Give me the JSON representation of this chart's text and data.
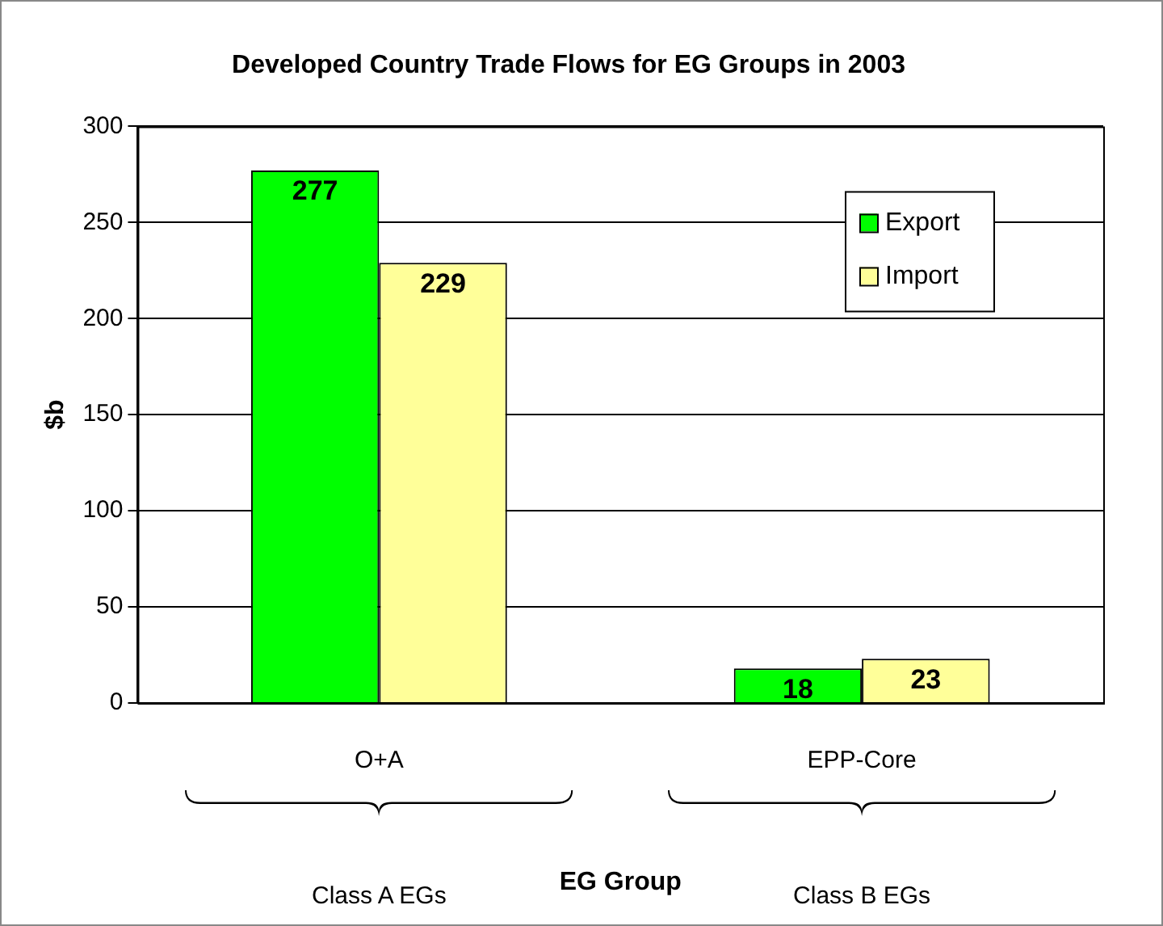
{
  "chart_data": {
    "type": "bar",
    "title": "Developed Country Trade Flows for EG Groups in 2003",
    "xlabel": "EG Group",
    "ylabel": "$b",
    "categories": [
      "O+A",
      "EPP-Core"
    ],
    "series": [
      {
        "name": "Export",
        "color": "#00ff00",
        "values": [
          277,
          18
        ]
      },
      {
        "name": "Import",
        "color": "#ffff99",
        "values": [
          229,
          23
        ]
      }
    ],
    "ylim": [
      0,
      300
    ],
    "yticks": [
      0,
      50,
      100,
      150,
      200,
      250,
      300
    ],
    "grid": "y",
    "legend": "top right",
    "data_labels": true,
    "annotations": [
      "Class A EGs",
      "Class B EGs"
    ]
  }
}
